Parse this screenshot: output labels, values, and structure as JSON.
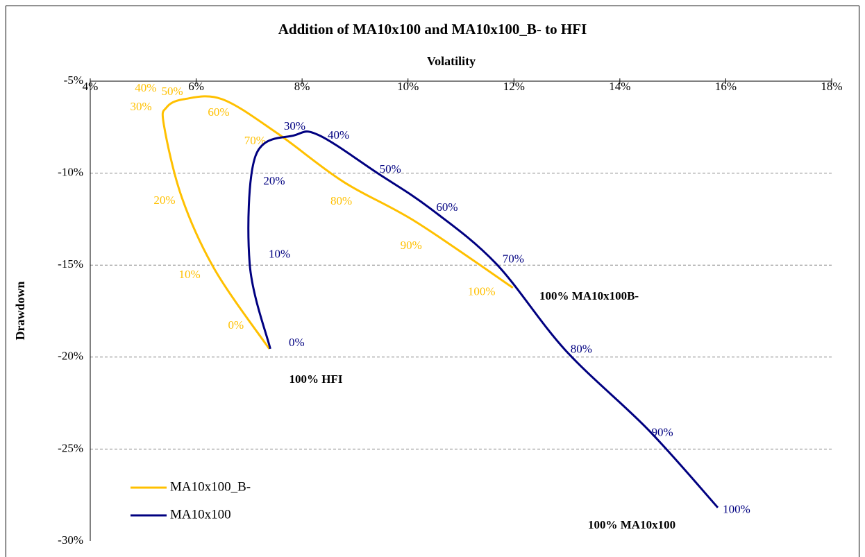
{
  "chart_data": {
    "type": "line",
    "title": "Addition of MA10x100 and MA10x100_B- to HFI",
    "x_label": "Volatility",
    "y_label": "Drawdown",
    "xlim": [
      4,
      18
    ],
    "ylim": [
      -30,
      -5
    ],
    "xticks": [
      {
        "value": 4,
        "label": "4%"
      },
      {
        "value": 6,
        "label": "6%"
      },
      {
        "value": 8,
        "label": "8%"
      },
      {
        "value": 10,
        "label": "10%"
      },
      {
        "value": 12,
        "label": "12%"
      },
      {
        "value": 14,
        "label": "14%"
      },
      {
        "value": 16,
        "label": "16%"
      },
      {
        "value": 18,
        "label": "18%"
      }
    ],
    "yticks": [
      {
        "value": -5,
        "label": "-5%"
      },
      {
        "value": -10,
        "label": "-10%"
      },
      {
        "value": -15,
        "label": "-15%"
      },
      {
        "value": -20,
        "label": "-20%"
      },
      {
        "value": -25,
        "label": "-25%"
      },
      {
        "value": -30,
        "label": "-30%"
      }
    ],
    "grid": true,
    "legend": "lower left",
    "series": [
      {
        "name": "MA10x100_B-",
        "color": "#ffc000",
        "x": [
          7.38,
          6.36,
          5.73,
          5.39,
          5.44,
          5.77,
          6.49,
          7.53,
          8.78,
          10.15,
          11.98
        ],
        "values": [
          -19.55,
          -15.29,
          -11.33,
          -7.37,
          -6.43,
          -5.98,
          -5.98,
          -7.83,
          -10.47,
          -12.65,
          -16.23
        ],
        "point_labels": [
          "0%",
          "10%",
          "20%",
          "30%",
          "40%",
          "50%",
          "60%",
          "70%",
          "80%",
          "90%",
          "100%"
        ]
      },
      {
        "name": "MA10x100",
        "color": "#000080",
        "x": [
          7.4,
          7.01,
          7.12,
          7.86,
          8.32,
          9.43,
          10.41,
          11.66,
          12.97,
          14.54,
          15.85
        ],
        "values": [
          -19.55,
          -14.91,
          -9.07,
          -7.94,
          -7.94,
          -10.01,
          -11.9,
          -14.91,
          -19.62,
          -23.96,
          -28.18
        ],
        "point_labels": [
          "0%",
          "10%",
          "20%",
          "30%",
          "40%",
          "50%",
          "60%",
          "70%",
          "80%",
          "90%",
          "100%"
        ]
      }
    ],
    "annotations": [
      "100% HFI",
      "100% MA10x100B-",
      "100% MA10x100"
    ]
  }
}
